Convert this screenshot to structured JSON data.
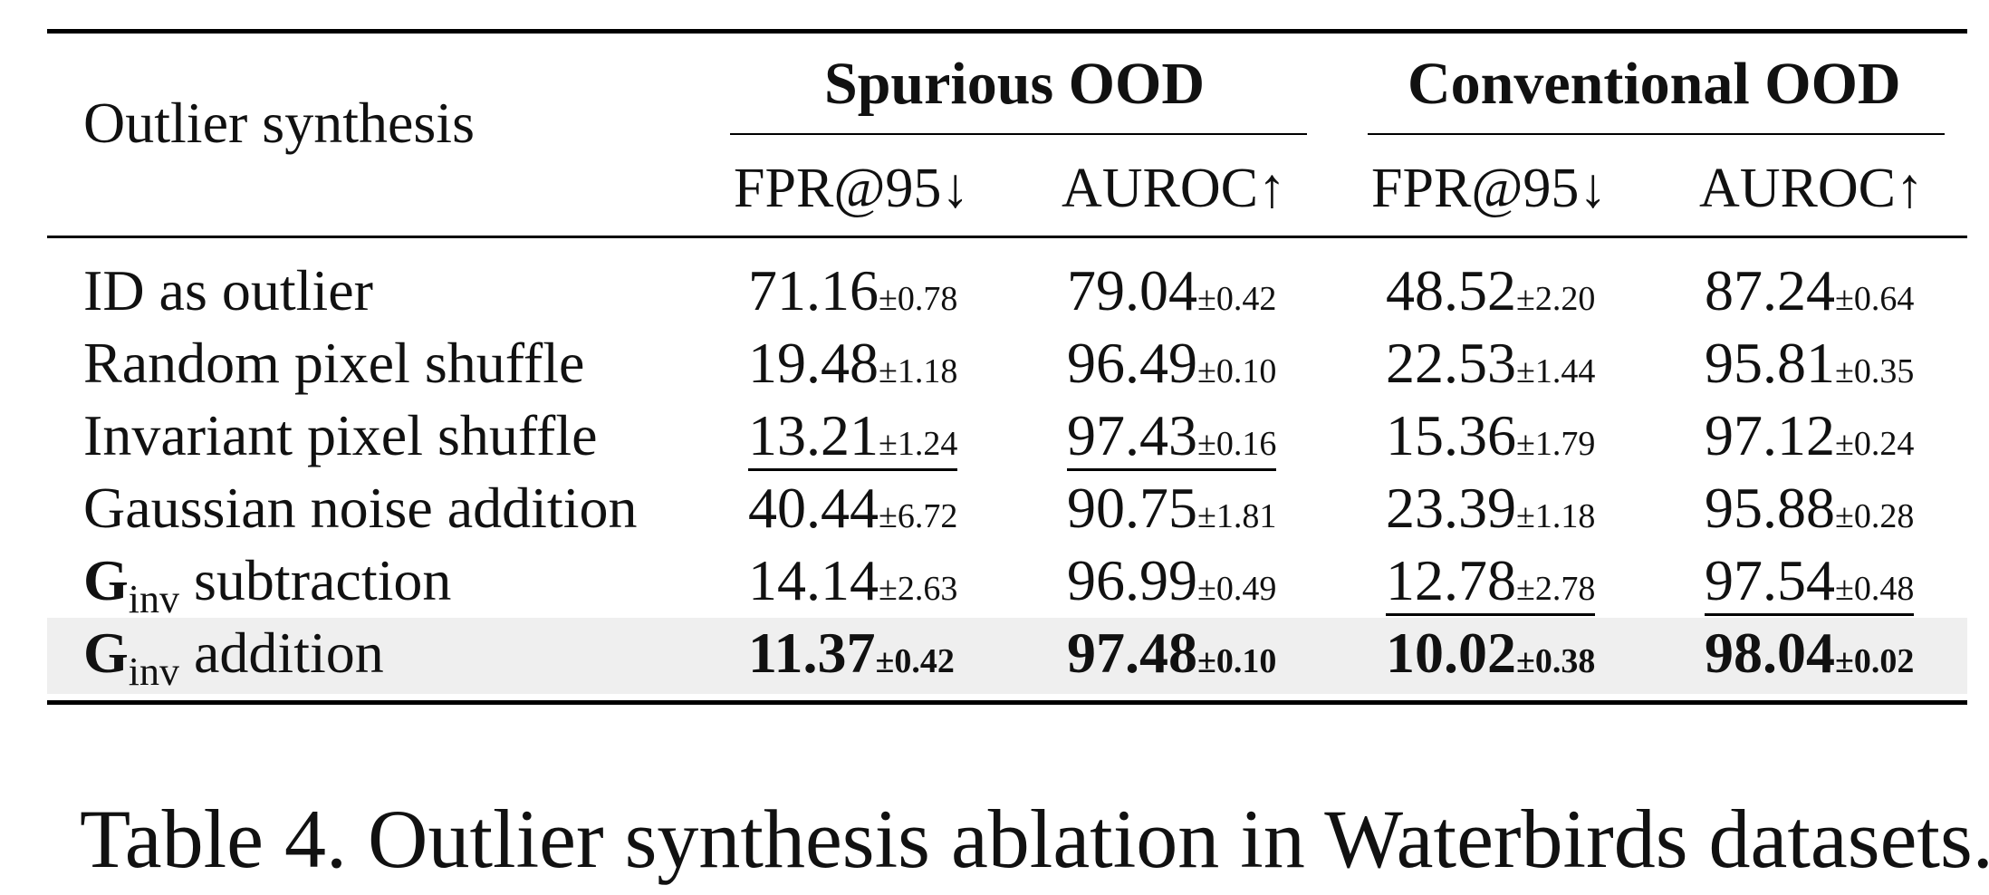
{
  "table": {
    "header": {
      "row_label": "Outlier synthesis",
      "groups": [
        "Spurious OOD",
        "Conventional OOD"
      ],
      "metrics": [
        "FPR@95↓",
        "AUROC↑",
        "FPR@95↓",
        "AUROC↑"
      ]
    },
    "rows": [
      {
        "label": "ID as outlier",
        "cells": [
          {
            "v": "71.16",
            "pm": "±0.78"
          },
          {
            "v": "79.04",
            "pm": "±0.42"
          },
          {
            "v": "48.52",
            "pm": "±2.20"
          },
          {
            "v": "87.24",
            "pm": "±0.64"
          }
        ]
      },
      {
        "label": "Random pixel shuffle",
        "cells": [
          {
            "v": "19.48",
            "pm": "±1.18"
          },
          {
            "v": "96.49",
            "pm": "±0.10"
          },
          {
            "v": "22.53",
            "pm": "±1.44"
          },
          {
            "v": "95.81",
            "pm": "±0.35"
          }
        ]
      },
      {
        "label": "Invariant pixel shuffle",
        "cells": [
          {
            "v": "13.21",
            "pm": "±1.24"
          },
          {
            "v": "97.43",
            "pm": "±0.16"
          },
          {
            "v": "15.36",
            "pm": "±1.79"
          },
          {
            "v": "97.12",
            "pm": "±0.24"
          }
        ]
      },
      {
        "label": "Gaussian noise addition",
        "cells": [
          {
            "v": "40.44",
            "pm": "±6.72"
          },
          {
            "v": "90.75",
            "pm": "±1.81"
          },
          {
            "v": "23.39",
            "pm": "±1.18"
          },
          {
            "v": "95.88",
            "pm": "±0.28"
          }
        ]
      },
      {
        "label_main": "G",
        "label_sub": "inv",
        "label_rest": " subtraction",
        "cells": [
          {
            "v": "14.14",
            "pm": "±2.63"
          },
          {
            "v": "96.99",
            "pm": "±0.49"
          },
          {
            "v": "12.78",
            "pm": "±2.78"
          },
          {
            "v": "97.54",
            "pm": "±0.48"
          }
        ]
      },
      {
        "label_main": "G",
        "label_sub": "inv",
        "label_rest": " addition",
        "cells": [
          {
            "v": "11.37",
            "pm": "±0.42"
          },
          {
            "v": "97.48",
            "pm": "±0.10"
          },
          {
            "v": "10.02",
            "pm": "±0.38"
          },
          {
            "v": "98.04",
            "pm": "±0.02"
          }
        ]
      }
    ]
  },
  "caption": "Table 4. Outlier synthesis ablation in Waterbirds datasets."
}
